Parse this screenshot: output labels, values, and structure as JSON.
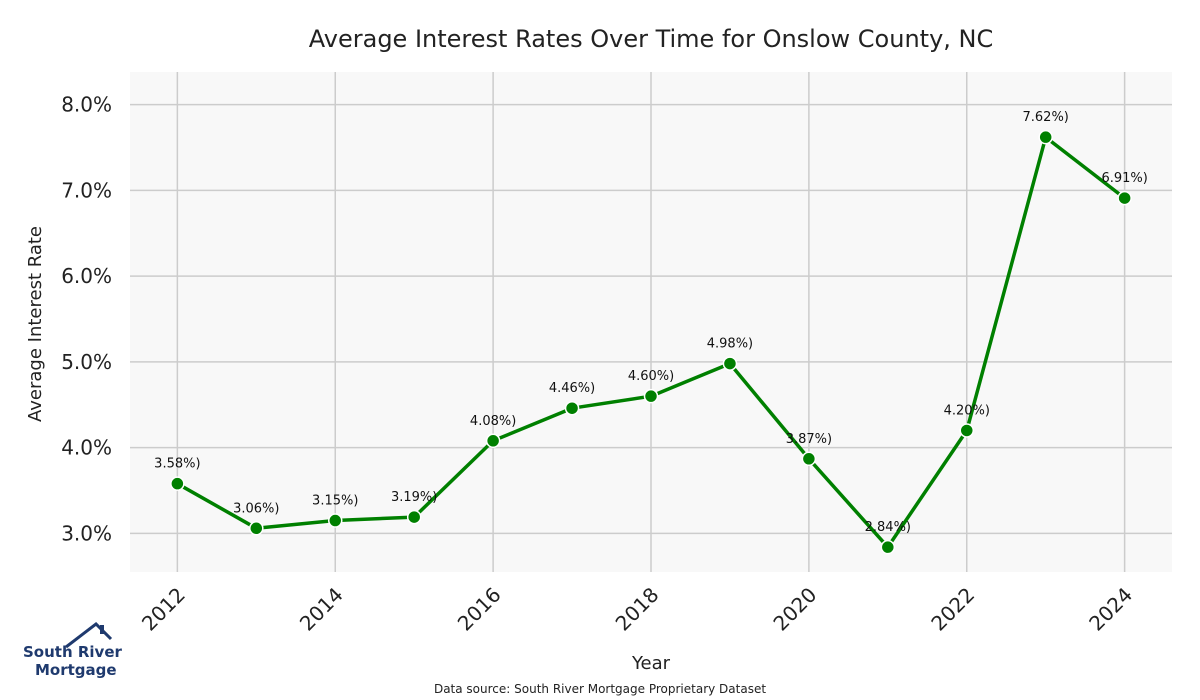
{
  "chart_data": {
    "type": "line",
    "title": "Average Interest Rates Over Time for Onslow County, NC",
    "xlabel": "Year",
    "ylabel": "Average Interest Rate",
    "x": [
      2012,
      2013,
      2014,
      2015,
      2016,
      2017,
      2018,
      2019,
      2020,
      2021,
      2022,
      2023,
      2024
    ],
    "values": [
      3.58,
      3.06,
      3.15,
      3.19,
      4.08,
      4.46,
      4.6,
      4.98,
      3.87,
      2.84,
      4.2,
      7.62,
      6.91
    ],
    "data_labels": [
      "3.58%)",
      "3.06%)",
      "3.15%)",
      "3.19%)",
      "4.08%)",
      "4.46%)",
      "4.60%)",
      "4.98%)",
      "3.87%)",
      "2.84%)",
      "4.20%)",
      "7.62%)",
      "6.91%)"
    ],
    "xticks": [
      2012,
      2014,
      2016,
      2018,
      2020,
      2022,
      2024
    ],
    "xtick_labels": [
      "2012",
      "2014",
      "2016",
      "2018",
      "2020",
      "2022",
      "2024"
    ],
    "yticks": [
      3,
      4,
      5,
      6,
      7,
      8
    ],
    "ytick_labels": [
      "3.0%",
      "4.0%",
      "5.0%",
      "6.0%",
      "7.0%",
      "8.0%"
    ],
    "xlim": [
      2011.4,
      2024.6
    ],
    "ylim": [
      2.55,
      8.38
    ],
    "grid": true,
    "line_color": "#008000",
    "plot_bg": "#f8f8f8",
    "grid_color": "#cccccc"
  },
  "footer": {
    "source": "Data source: South River Mortgage Proprietary Dataset"
  },
  "logo": {
    "line1": "South River",
    "line2": "Mortgage",
    "color": "#1f3a6e"
  }
}
